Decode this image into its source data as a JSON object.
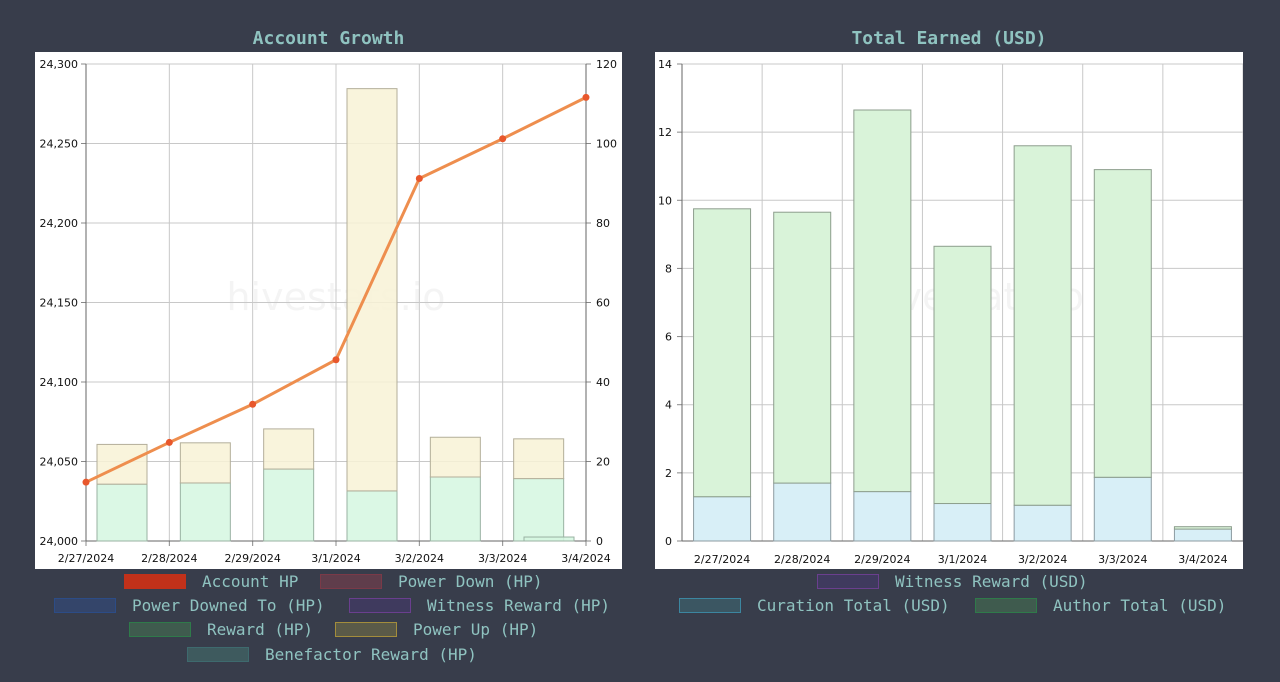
{
  "chart_data": [
    {
      "type": "bar",
      "title": "Account Growth",
      "watermark": "hivestats.io",
      "categories": [
        "2/27/2024",
        "2/28/2024",
        "2/29/2024",
        "3/1/2024",
        "3/2/2024",
        "3/3/2024",
        "3/4/2024"
      ],
      "y_left": {
        "ylim": [
          24000,
          24300
        ],
        "ticks": [
          "24,000",
          "24,050",
          "24,100",
          "24,150",
          "24,200",
          "24,250",
          "24,300"
        ]
      },
      "y_right": {
        "ylim": [
          0,
          120
        ],
        "ticks": [
          "0",
          "20",
          "40",
          "60",
          "80",
          "100",
          "120"
        ]
      },
      "series": [
        {
          "name": "Account HP",
          "kind": "line",
          "axis": "left",
          "color": "#ee8e4e",
          "values": [
            24037,
            24062,
            24086,
            24114,
            24228,
            24253,
            24279
          ]
        },
        {
          "name": "Reward (HP)",
          "kind": "bar",
          "axis": "right",
          "stack": "s",
          "color": "#d5f7e1",
          "values": [
            14.3,
            14.6,
            18.1,
            12.6,
            16.1,
            15.7,
            1.0
          ]
        },
        {
          "name": "Power Up (HP)",
          "kind": "bar",
          "axis": "right",
          "stack": "s",
          "color": "#f8f2d6",
          "values": [
            10.0,
            10.1,
            10.1,
            101.2,
            10.0,
            10.0,
            0
          ]
        }
      ],
      "legend": [
        {
          "label": "Account HP",
          "fill": "#c1311a",
          "border": "#c1311a"
        },
        {
          "label": "Power Down (HP)",
          "fill": "#5f3d4b",
          "border": "#7a3a48"
        },
        {
          "label": "Power Downed To (HP)",
          "fill": "#34456a",
          "border": "#2c4c86"
        },
        {
          "label": "Witness Reward (HP)",
          "fill": "#3f3a5e",
          "border": "#6a3f8e"
        },
        {
          "label": "Reward (HP)",
          "fill": "#3f5b4e",
          "border": "#2f7a4a"
        },
        {
          "label": "Power Up (HP)",
          "fill": "#5a5a48",
          "border": "#a38d3c"
        },
        {
          "label": "Benefactor Reward (HP)",
          "fill": "#3e5a5e",
          "border": "#3e6a6e"
        }
      ]
    },
    {
      "type": "bar",
      "title": "Total Earned (USD)",
      "watermark": "hivestats.io",
      "categories": [
        "2/27/2024",
        "2/28/2024",
        "2/29/2024",
        "3/1/2024",
        "3/2/2024",
        "3/3/2024",
        "3/4/2024"
      ],
      "ylim": [
        0,
        14
      ],
      "ticks": [
        "0",
        "2",
        "4",
        "6",
        "8",
        "10",
        "12",
        "14"
      ],
      "series": [
        {
          "name": "Curation Total (USD)",
          "stack": "s",
          "color": "#d8eff7",
          "values": [
            1.3,
            1.7,
            1.45,
            1.1,
            1.05,
            1.87,
            0.35
          ]
        },
        {
          "name": "Author Total (USD)",
          "stack": "s",
          "color": "#d9f3d9",
          "values": [
            8.45,
            7.95,
            11.2,
            7.55,
            10.55,
            9.03,
            0.07
          ]
        }
      ],
      "legend": [
        {
          "label": "Witness Reward (USD)",
          "fill": "#3f3a5e",
          "border": "#6a3f8e"
        },
        {
          "label": "Curation Total (USD)",
          "fill": "#3b5662",
          "border": "#3c86a0"
        },
        {
          "label": "Author Total (USD)",
          "fill": "#3f5b4e",
          "border": "#2f7a4a"
        }
      ]
    }
  ]
}
